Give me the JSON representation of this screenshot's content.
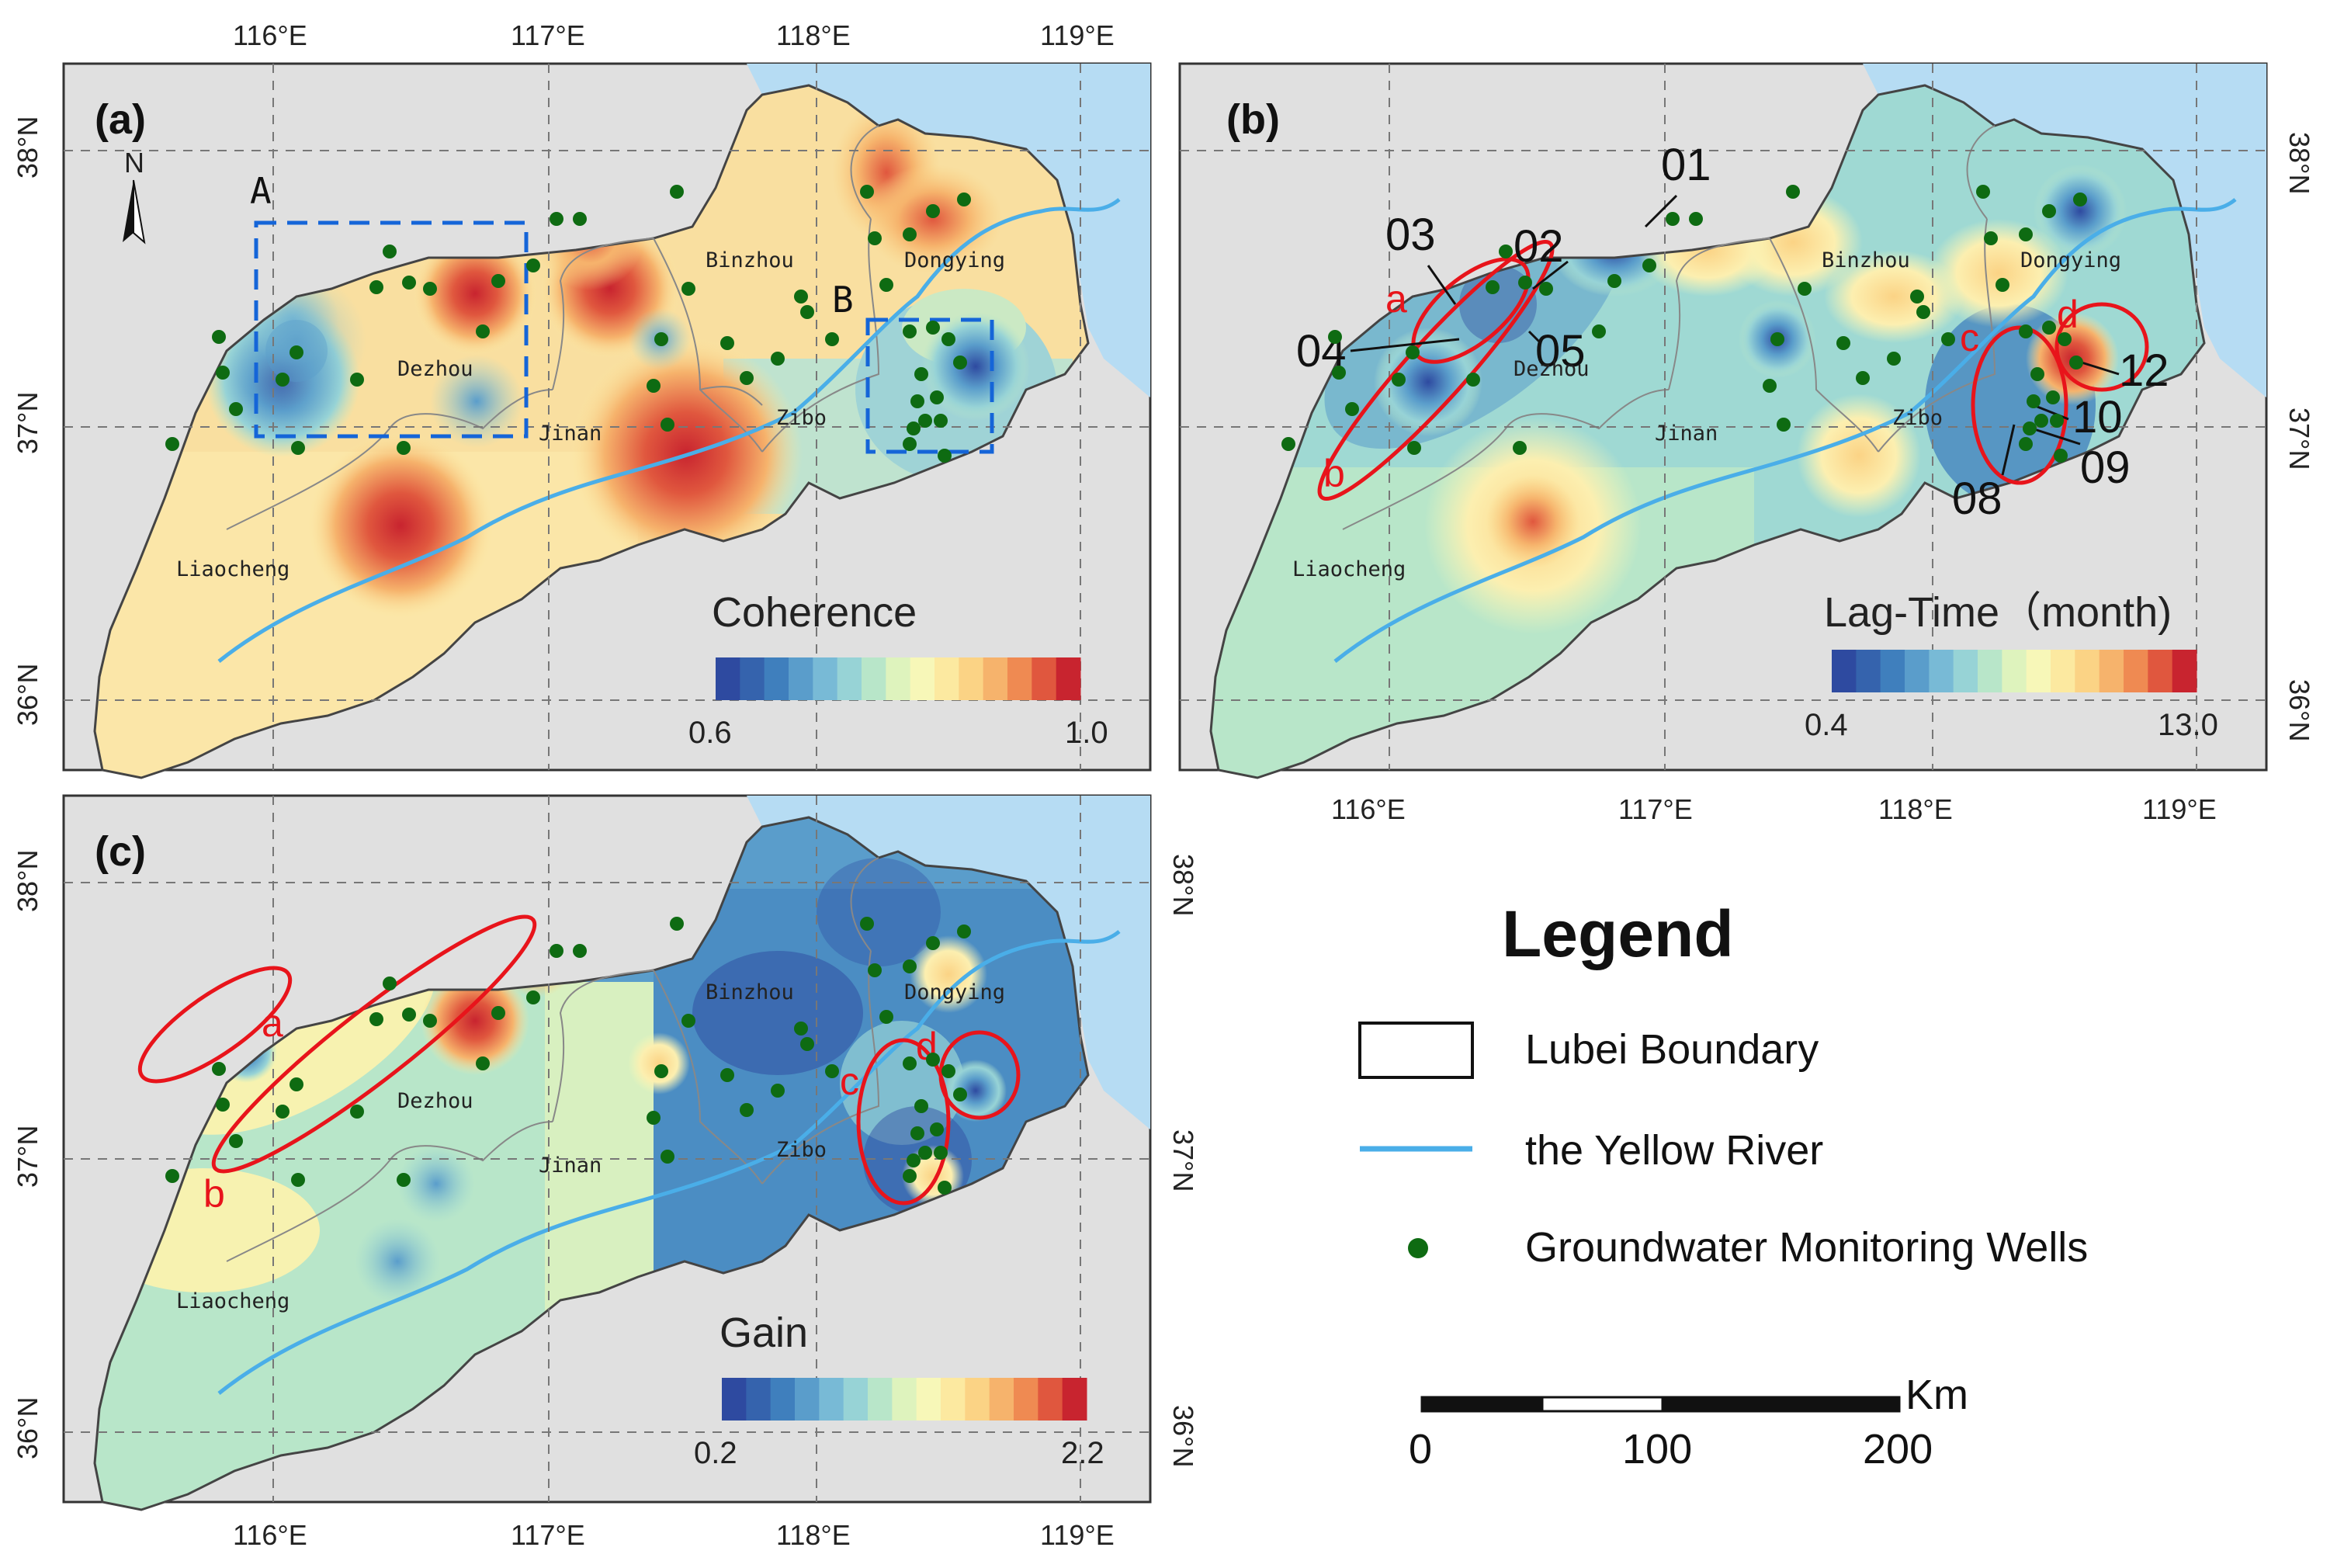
{
  "panels": [
    {
      "id": "a",
      "tag": "(a)",
      "variable": "Coherence",
      "min_label": "0.6",
      "max_label": "1.0",
      "lon_ticks": [
        "116°E",
        "117°E",
        "118°E",
        "119°E"
      ],
      "lat_ticks": [
        "38°N",
        "37°N",
        "36°N"
      ],
      "north": "N",
      "boxes": [
        "A",
        "B"
      ]
    },
    {
      "id": "b",
      "tag": "(b)",
      "variable": "Lag-Time（month)",
      "min_label": "0.4",
      "max_label": "13.0",
      "lon_ticks": [
        "116°E",
        "117°E",
        "118°E",
        "119°E"
      ],
      "lat_ticks": [
        "38°N",
        "37°N",
        "36°N"
      ],
      "zones": [
        "a",
        "b",
        "c",
        "d"
      ],
      "wells": [
        "01",
        "02",
        "03",
        "04",
        "05",
        "08",
        "09",
        "10",
        "12"
      ]
    },
    {
      "id": "c",
      "tag": "(c)",
      "variable": "Gain",
      "min_label": "0.2",
      "max_label": "2.2",
      "lon_ticks": [
        "116°E",
        "117°E",
        "118°E",
        "119°E"
      ],
      "lat_ticks": [
        "38°N",
        "37°N",
        "36°N"
      ],
      "zones": [
        "a",
        "b",
        "c",
        "d"
      ]
    }
  ],
  "cities": [
    "Binzhou",
    "Dongying",
    "Dezhou",
    "Jinan",
    "Zibo",
    "Liaocheng"
  ],
  "colorbar_colors": [
    "#2e4aa0",
    "#3563ad",
    "#3f7fbd",
    "#5a9dcb",
    "#78bad6",
    "#97d3d6",
    "#b8e6c9",
    "#def3bd",
    "#f7f7b8",
    "#fce9a0",
    "#fbd385",
    "#f6b36c",
    "#ef8a52",
    "#e0573e",
    "#c8242f"
  ],
  "legend": {
    "title": "Legend",
    "boundary": "Lubei Boundary",
    "river": "the Yellow River",
    "wells": "Groundwater Monitoring Wells",
    "scale_unit": "Km",
    "scale_ticks": [
      "0",
      "100",
      "200"
    ]
  },
  "colors": {
    "river": "#4aaee8",
    "sea": "#b6dcf3",
    "land_outside": "#e0e0e0",
    "well": "#0e6b12",
    "annotation": "#e8141b",
    "box": "#1565d8"
  }
}
